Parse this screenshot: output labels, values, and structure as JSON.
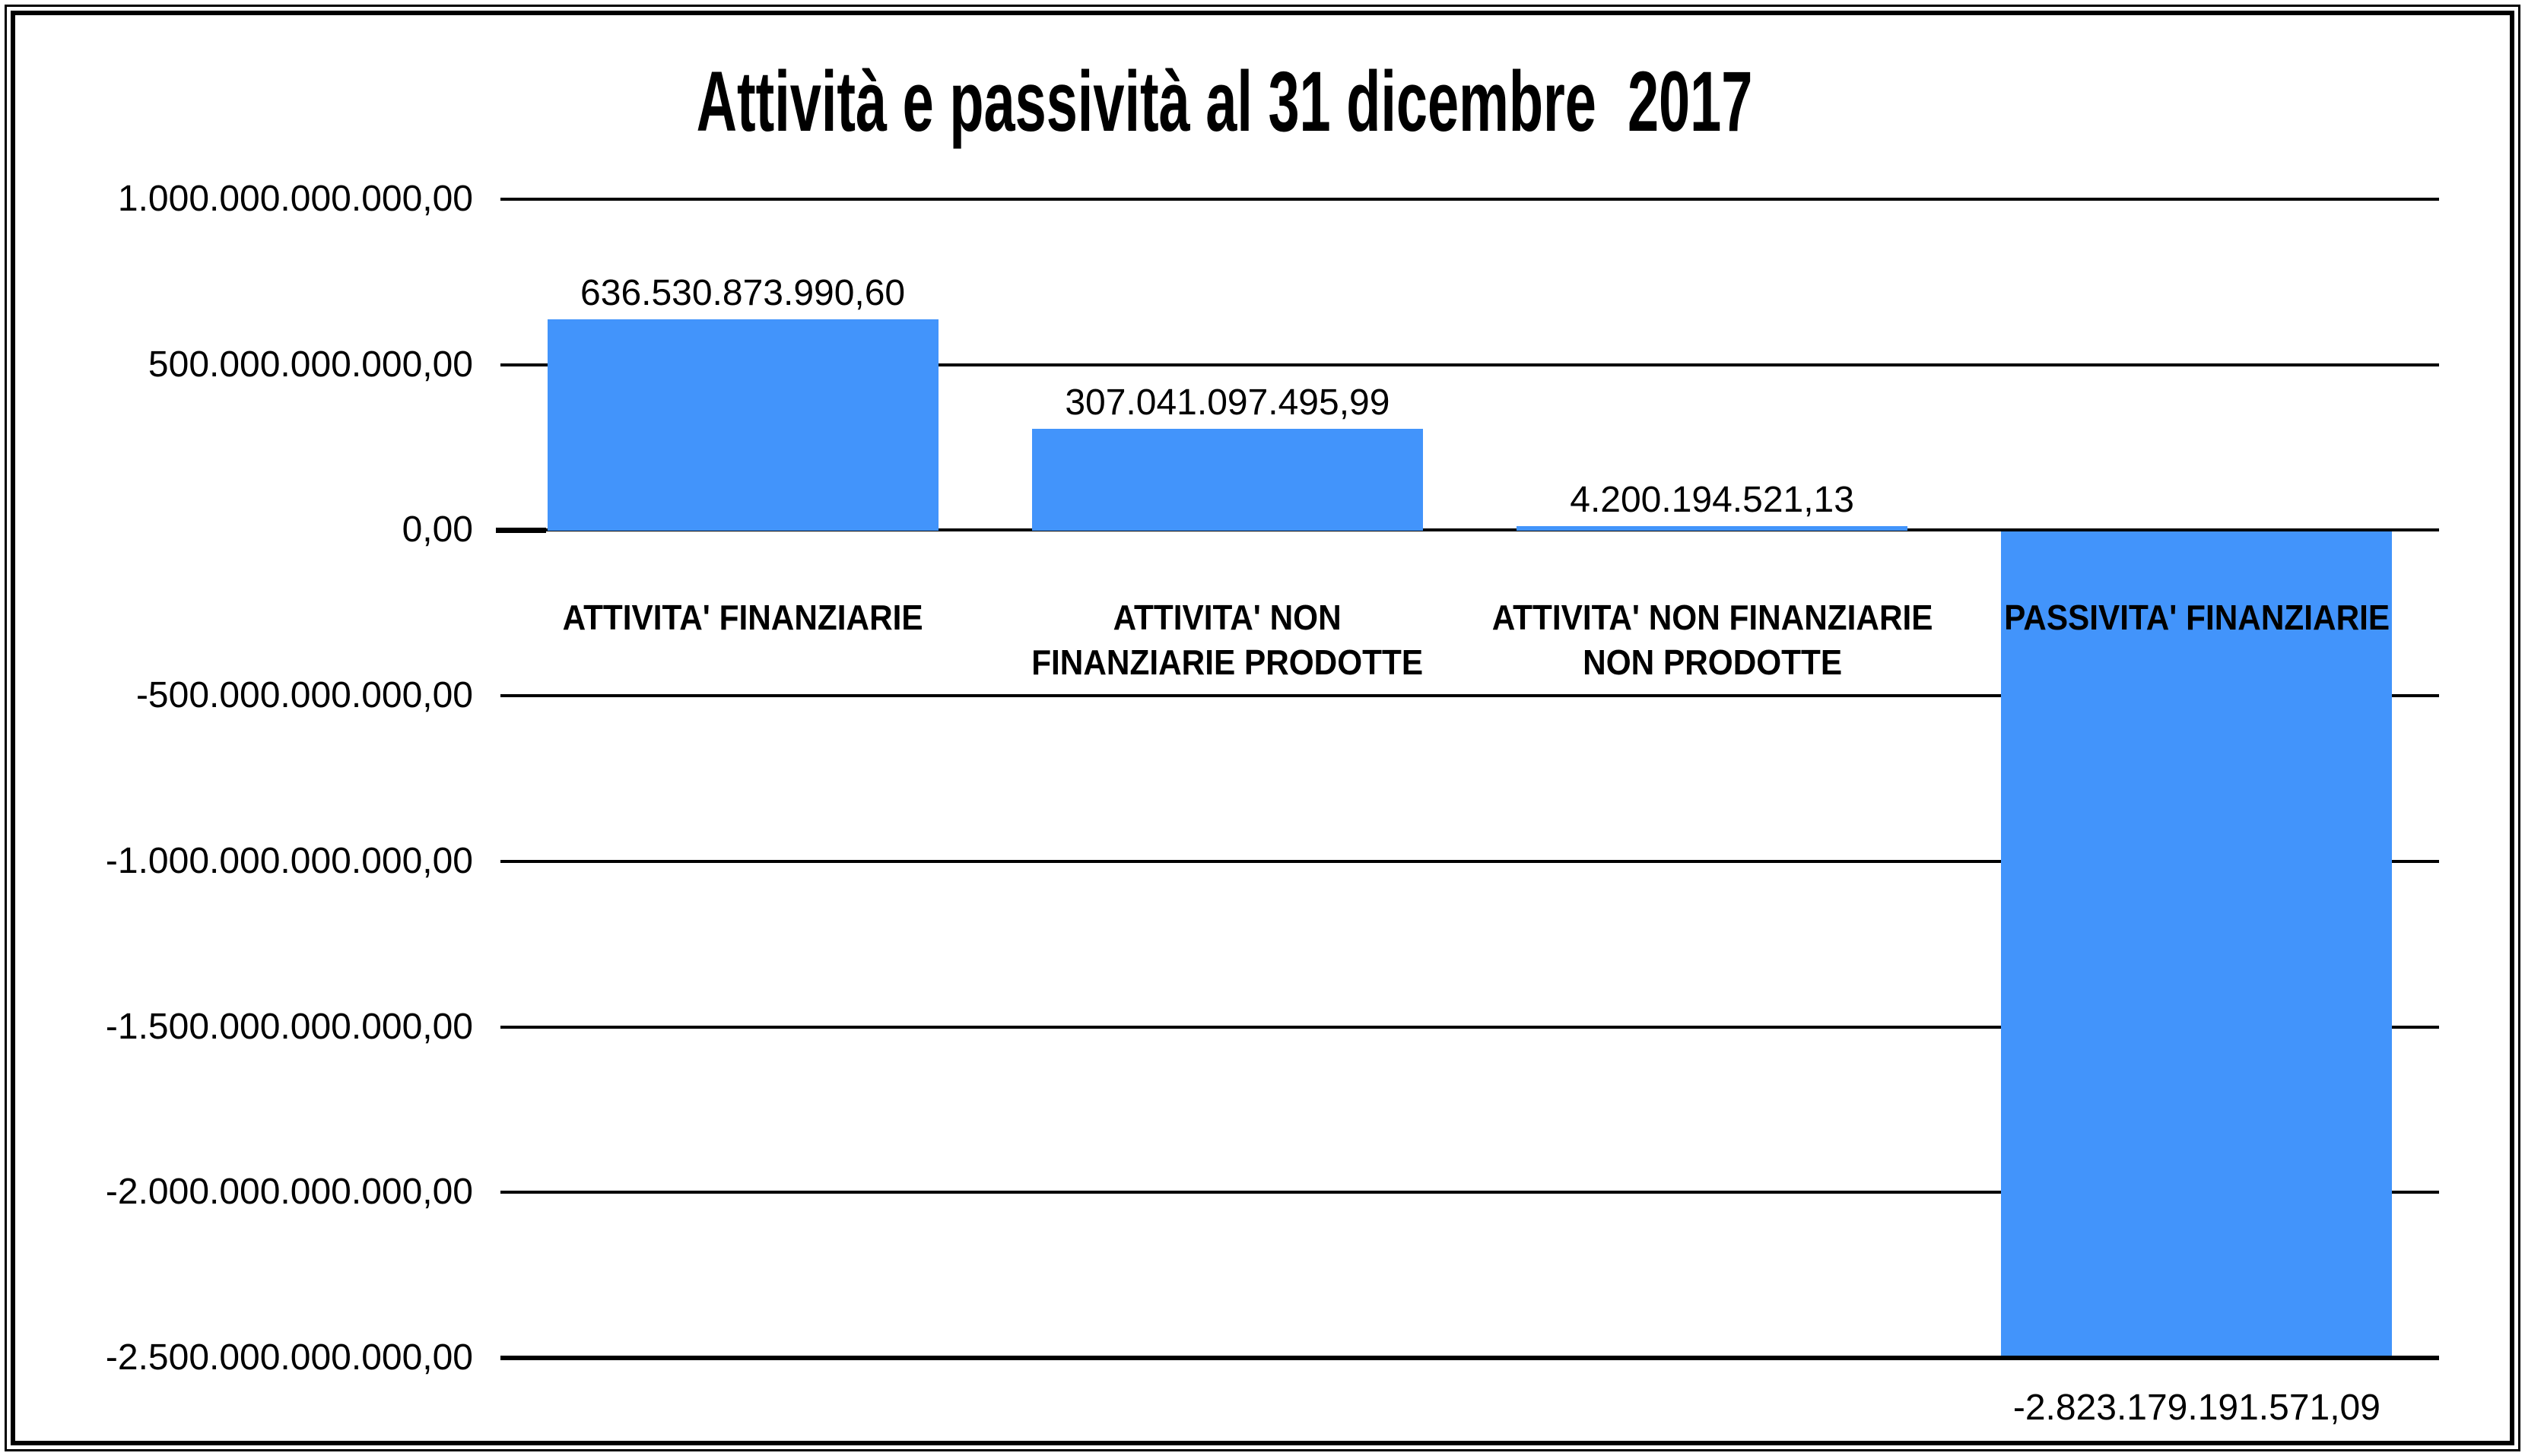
{
  "page": {
    "background_color": "#ffffff",
    "frame_color": "#000000"
  },
  "chart_data": {
    "type": "bar",
    "title": "Attività e passività al 31 dicembre  2017",
    "categories": [
      {
        "label": "ATTIVITA' FINANZIARIE",
        "label_lines": [
          "ATTIVITA' FINANZIARIE"
        ],
        "value": 636530873990.6,
        "value_label": "636.530.873.990,60"
      },
      {
        "label": "ATTIVITA' NON FINANZIARIE PRODOTTE",
        "label_lines": [
          "ATTIVITA' NON",
          "FINANZIARIE PRODOTTE"
        ],
        "value": 307041097495.99,
        "value_label": "307.041.097.495,99"
      },
      {
        "label": "ATTIVITA' NON FINANZIARIE NON PRODOTTE",
        "label_lines": [
          "ATTIVITA' NON FINANZIARIE",
          "NON PRODOTTE"
        ],
        "value": 4200194521.13,
        "value_label": "4.200.194.521,13"
      },
      {
        "label": "PASSIVITA' FINANZIARIE",
        "label_lines": [
          "PASSIVITA' FINANZIARIE"
        ],
        "value": -2823179191571.09,
        "value_label": "-2.823.179.191.571,09"
      }
    ],
    "y_axis": {
      "min": -2500000000000,
      "max": 1000000000000,
      "step": 500000000000,
      "tick_labels": [
        "1.000.000.000.000,00",
        "500.000.000.000,00",
        "0,00",
        "-500.000.000.000,00",
        "-1.000.000.000.000,00",
        "-1.500.000.000.000,00",
        "-2.000.000.000.000,00",
        "-2.500.000.000.000,00"
      ]
    },
    "xlabel": "",
    "ylabel": "",
    "bar_color": "#4294FB",
    "line_color": "#000000",
    "text_color": "#000000",
    "gridlines": true,
    "legend": false,
    "note": "fourth bar clipped at axis minimum"
  }
}
